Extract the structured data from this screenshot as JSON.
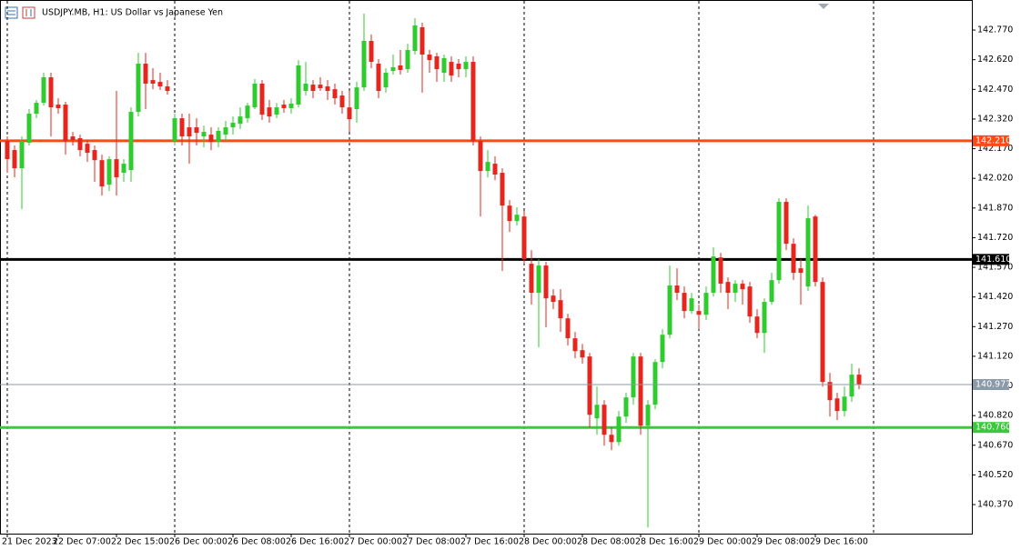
{
  "chart_data": {
    "type": "candlestick",
    "title": "USDJPY.MB, H1:  US Dollar vs Japanese Yen",
    "up_color": "#2fcb2f",
    "down_color": "#e5261f",
    "categories": [
      "21 Dec 2023",
      null,
      null,
      null,
      null,
      null,
      null,
      "22 Dec 07:00",
      null,
      null,
      null,
      null,
      null,
      null,
      null,
      "22 Dec 15:00",
      null,
      null,
      null,
      null,
      null,
      null,
      null,
      "26 Dec 00:00",
      null,
      null,
      null,
      null,
      null,
      null,
      null,
      "26 Dec 08:00",
      null,
      null,
      null,
      null,
      null,
      null,
      null,
      "26 Dec 16:00",
      null,
      null,
      null,
      null,
      null,
      null,
      null,
      "27 Dec 00:00",
      null,
      null,
      null,
      null,
      null,
      null,
      null,
      "27 Dec 08:00",
      null,
      null,
      null,
      null,
      null,
      null,
      null,
      "27 Dec 16:00",
      null,
      null,
      null,
      null,
      null,
      null,
      null,
      "28 Dec 00:00",
      null,
      null,
      null,
      null,
      null,
      null,
      null,
      "28 Dec 08:00",
      null,
      null,
      null,
      null,
      null,
      null,
      null,
      "28 Dec 16:00",
      null,
      null,
      null,
      null,
      null,
      null,
      null,
      "29 Dec 00:00",
      null,
      null,
      null,
      null,
      null,
      null,
      null,
      "29 Dec 08:00",
      null,
      null,
      null,
      null,
      null,
      null,
      null,
      "29 Dec 16:00",
      null,
      null,
      null,
      null,
      null,
      null
    ],
    "open": [
      142.209,
      142.163,
      142.071,
      142.2,
      142.347,
      142.402,
      142.531,
      142.393,
      142.393,
      142.232,
      142.223,
      142.195,
      142.163,
      142.112,
      141.988,
      142.117,
      142.048,
      142.062,
      142.356,
      142.6,
      142.517,
      142.508,
      142.485,
      142.209,
      142.324,
      142.278,
      142.278,
      142.232,
      142.241,
      142.204,
      142.241,
      142.278,
      142.296,
      142.324,
      142.379,
      142.499,
      142.379,
      142.342,
      142.393,
      142.375,
      142.393,
      142.462,
      142.494,
      142.494,
      142.485,
      142.471,
      142.439,
      142.379,
      142.37,
      142.48,
      142.715,
      142.6,
      142.48,
      142.563,
      142.591,
      142.572,
      142.664,
      142.784,
      142.646,
      142.637,
      142.554,
      142.609,
      142.6,
      142.572,
      142.609,
      142.209,
      142.057,
      142.094,
      142.048,
      141.882,
      141.804,
      141.827,
      141.588,
      141.441,
      141.579,
      141.427,
      141.404,
      141.312,
      141.211,
      141.151,
      141.119,
      140.806,
      140.875,
      140.723,
      140.686,
      140.815,
      140.912,
      141.119,
      140.769,
      140.875,
      141.091,
      141.229,
      141.478,
      141.441,
      141.349,
      141.349,
      141.33,
      141.441,
      141.62,
      141.496,
      141.441,
      141.487,
      141.473,
      141.321,
      141.238,
      141.395,
      141.505,
      141.901,
      141.689,
      141.565,
      141.473,
      141.827,
      141.496,
      140.99,
      140.907,
      140.843,
      140.916,
      141.027
    ],
    "high": [
      142.232,
      142.186,
      142.232,
      142.37,
      142.416,
      142.554,
      142.554,
      142.425,
      142.407,
      142.255,
      142.241,
      142.214,
      142.186,
      142.14,
      142.131,
      142.462,
      142.117,
      142.379,
      142.655,
      142.655,
      142.577,
      142.554,
      142.517,
      142.347,
      142.347,
      142.347,
      142.324,
      142.287,
      142.278,
      142.278,
      142.31,
      142.333,
      142.379,
      142.402,
      142.522,
      142.517,
      142.416,
      142.402,
      142.416,
      142.425,
      142.618,
      142.609,
      142.517,
      142.531,
      142.517,
      142.499,
      142.462,
      142.462,
      142.508,
      142.853,
      142.747,
      142.623,
      142.577,
      142.646,
      142.669,
      142.701,
      142.83,
      142.807,
      142.669,
      142.655,
      142.646,
      142.637,
      142.623,
      142.637,
      142.637,
      142.232,
      142.163,
      142.131,
      142.071,
      141.91,
      141.873,
      141.855,
      141.657,
      141.611,
      141.597,
      141.459,
      141.459,
      141.335,
      141.243,
      141.183,
      141.137,
      140.967,
      140.898,
      140.76,
      140.843,
      140.935,
      141.137,
      141.137,
      140.898,
      141.105,
      141.257,
      141.579,
      141.565,
      141.473,
      141.441,
      141.381,
      141.473,
      141.671,
      141.643,
      141.519,
      141.505,
      141.505,
      141.496,
      141.358,
      141.413,
      141.542,
      141.919,
      141.919,
      141.717,
      141.611,
      141.882,
      141.836,
      141.519,
      141.036,
      140.935,
      140.967,
      141.082,
      141.059
    ],
    "low": [
      142.048,
      142.025,
      141.864,
      142.186,
      142.324,
      142.388,
      142.232,
      142.347,
      142.14,
      142.186,
      142.131,
      142.103,
      142.002,
      141.933,
      141.956,
      141.933,
      142.002,
      142.002,
      142.333,
      142.37,
      142.471,
      142.467,
      142.444,
      142.186,
      142.186,
      142.094,
      142.186,
      142.177,
      142.163,
      142.177,
      142.209,
      142.241,
      142.269,
      142.301,
      142.37,
      142.315,
      142.301,
      142.324,
      142.352,
      142.347,
      142.379,
      142.439,
      142.425,
      142.462,
      142.416,
      142.393,
      142.347,
      142.255,
      142.301,
      142.462,
      142.577,
      142.425,
      142.453,
      142.545,
      142.545,
      142.554,
      142.646,
      142.453,
      142.554,
      142.508,
      142.508,
      142.508,
      142.531,
      142.531,
      142.186,
      141.827,
      142.025,
      142.011,
      141.551,
      141.749,
      141.781,
      141.588,
      141.381,
      141.165,
      141.266,
      141.358,
      141.243,
      141.174,
      141.11,
      141.082,
      140.76,
      140.723,
      140.668,
      140.645,
      140.668,
      140.783,
      140.875,
      140.723,
      140.254,
      140.852,
      141.059,
      141.211,
      141.404,
      141.312,
      141.335,
      141.257,
      141.303,
      141.422,
      141.441,
      141.358,
      141.395,
      141.381,
      141.289,
      141.211,
      141.137,
      141.381,
      141.487,
      141.657,
      141.505,
      141.381,
      141.45,
      141.473,
      140.967,
      140.815,
      140.797,
      140.815,
      140.889,
      140.953
    ],
    "close": [
      142.117,
      142.071,
      142.209,
      142.347,
      142.402,
      142.531,
      142.379,
      142.375,
      142.209,
      142.214,
      142.163,
      142.149,
      142.112,
      141.979,
      142.117,
      142.025,
      142.094,
      142.356,
      142.6,
      142.499,
      142.499,
      142.485,
      142.462,
      142.324,
      142.232,
      142.232,
      142.25,
      142.255,
      142.204,
      142.26,
      142.278,
      142.301,
      142.333,
      142.388,
      142.499,
      142.342,
      142.333,
      142.379,
      142.375,
      142.398,
      142.591,
      142.499,
      142.462,
      142.476,
      142.462,
      142.425,
      142.379,
      142.319,
      142.48,
      142.715,
      142.609,
      142.462,
      142.554,
      142.582,
      142.568,
      142.669,
      142.793,
      142.646,
      142.618,
      142.572,
      142.628,
      142.54,
      142.572,
      142.609,
      142.209,
      142.057,
      142.103,
      142.039,
      141.882,
      141.804,
      141.836,
      141.611,
      141.441,
      141.579,
      141.413,
      141.395,
      141.312,
      141.211,
      141.146,
      141.114,
      140.824,
      140.875,
      140.723,
      140.686,
      140.815,
      140.912,
      141.119,
      140.769,
      140.875,
      141.091,
      141.229,
      141.478,
      141.441,
      141.349,
      141.413,
      141.33,
      141.441,
      141.625,
      141.487,
      141.441,
      141.487,
      141.459,
      141.321,
      141.238,
      141.395,
      141.505,
      141.901,
      141.689,
      141.542,
      141.542,
      141.818,
      141.496,
      140.99,
      140.898,
      140.843,
      140.916,
      141.027,
      140.977
    ],
    "ylim": [
      140.223,
      142.922
    ],
    "yticks": [
      {
        "value": 140.37,
        "label": "140.370"
      },
      {
        "value": 140.52,
        "label": "140.520"
      },
      {
        "value": 140.67,
        "label": "140.670"
      },
      {
        "value": 140.82,
        "label": "140.820"
      },
      {
        "value": 140.97,
        "label": "140.970"
      },
      {
        "value": 141.12,
        "label": "141.120"
      },
      {
        "value": 141.27,
        "label": "141.270"
      },
      {
        "value": 141.42,
        "label": "141.420"
      },
      {
        "value": 141.57,
        "label": "141.570"
      },
      {
        "value": 141.72,
        "label": "141.720"
      },
      {
        "value": 141.87,
        "label": "141.870"
      },
      {
        "value": 142.02,
        "label": "142.020"
      },
      {
        "value": 142.17,
        "label": "142.170"
      },
      {
        "value": 142.32,
        "label": "142.320"
      },
      {
        "value": 142.47,
        "label": "142.470"
      },
      {
        "value": 142.62,
        "label": "142.620"
      },
      {
        "value": 142.77,
        "label": "142.770"
      }
    ],
    "levels": [
      {
        "value": 142.21,
        "label": "142.210",
        "color": "#ff4a14",
        "width": 3
      },
      {
        "value": 141.61,
        "label": "141.610",
        "color": "#000000",
        "width": 3
      },
      {
        "value": 140.76,
        "label": "140.760",
        "color": "#3cc83c",
        "width": 3
      },
      {
        "value": 140.977,
        "label": "140.977",
        "color": "#8a9aa8",
        "width": 1
      }
    ]
  }
}
